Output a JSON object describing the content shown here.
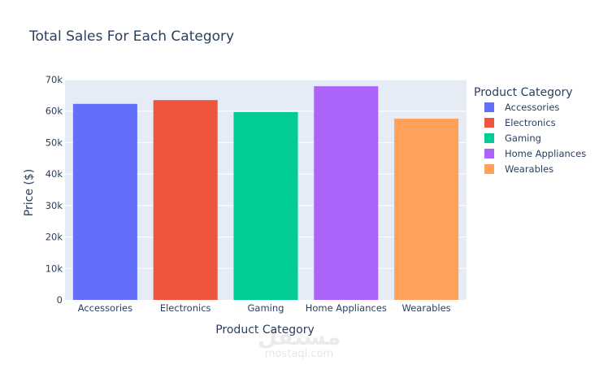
{
  "chart_data": {
    "type": "bar",
    "title": "Total Sales For Each Category",
    "xlabel": "Product Category",
    "ylabel": "Price ($)",
    "ylim": [
      0,
      70000
    ],
    "yticks": [
      0,
      10000,
      20000,
      30000,
      40000,
      50000,
      60000,
      70000
    ],
    "ytick_labels": [
      "0",
      "10k",
      "20k",
      "30k",
      "40k",
      "50k",
      "60k",
      "70k"
    ],
    "categories": [
      "Accessories",
      "Electronics",
      "Gaming",
      "Home Appliances",
      "Wearables"
    ],
    "values": [
      62300,
      63500,
      59700,
      67900,
      57600
    ],
    "colors": [
      "#636efa",
      "#ef553b",
      "#00cc96",
      "#ab63fa",
      "#ffa15a"
    ],
    "background": "#e5ecf6",
    "gridline_color": "#ffffff",
    "grid": true,
    "legend": {
      "title": "Product Category",
      "position": "right",
      "entries": [
        "Accessories",
        "Electronics",
        "Gaming",
        "Home Appliances",
        "Wearables"
      ]
    }
  },
  "watermark": {
    "main": "مستقل",
    "sub": "mostaql.com"
  }
}
